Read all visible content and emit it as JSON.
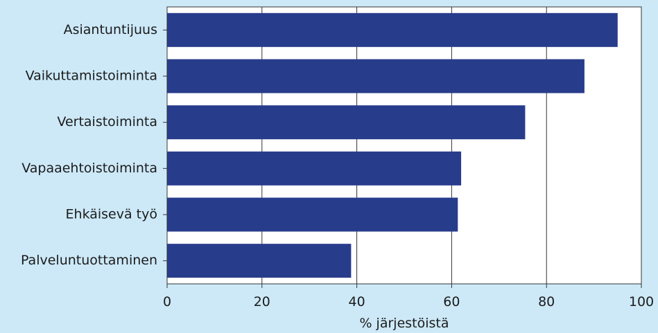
{
  "chart_data": {
    "type": "bar",
    "orientation": "horizontal",
    "categories": [
      "Asiantuntijuus",
      "Vaikuttamistoiminta",
      "Vertaistoiminta",
      "Vapaaehtoistoiminta",
      "Ehkäisevä työ",
      "Palveluntuottaminen"
    ],
    "values": [
      95,
      88,
      75.5,
      62,
      61.3,
      38.8
    ],
    "xlabel": "% järjestöistä",
    "ylabel": "",
    "xlim": [
      0,
      100
    ],
    "xticks": [
      "0",
      "20",
      "40",
      "60",
      "80",
      "100"
    ],
    "grid": true,
    "legend": "none",
    "colors": {
      "bar": "#283c8c",
      "plot_background": "#ffffff",
      "page_background": "#cde9f8",
      "grid": "#333333"
    }
  }
}
